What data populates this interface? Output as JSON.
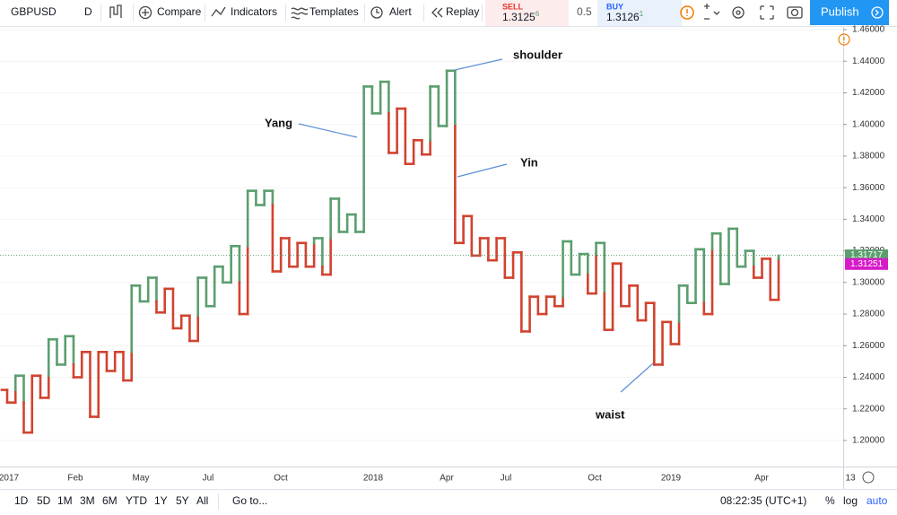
{
  "toolbar": {
    "symbol": "GBPUSD",
    "interval": "D",
    "buttons": [
      "Compare",
      "Indicators",
      "Templates",
      "Alert",
      "Replay"
    ],
    "sell": {
      "label": "SELL",
      "price": "1.3125",
      "pip": "6"
    },
    "spread": "0.5",
    "buy": {
      "label": "BUY",
      "price": "1.3126",
      "pip": "1"
    },
    "publish": "Publish"
  },
  "chart_data": {
    "type": "kagi",
    "values": [
      1.232,
      1.224,
      1.241,
      1.205,
      1.241,
      1.227,
      1.264,
      1.248,
      1.266,
      1.24,
      1.256,
      1.215,
      1.256,
      1.244,
      1.256,
      1.238,
      1.298,
      1.288,
      1.303,
      1.281,
      1.296,
      1.271,
      1.279,
      1.263,
      1.303,
      1.285,
      1.31,
      1.3,
      1.323,
      1.28,
      1.358,
      1.349,
      1.358,
      1.307,
      1.328,
      1.31,
      1.325,
      1.31,
      1.328,
      1.305,
      1.353,
      1.332,
      1.343,
      1.332,
      1.424,
      1.407,
      1.427,
      1.382,
      1.41,
      1.375,
      1.39,
      1.381,
      1.424,
      1.399,
      1.434,
      1.325,
      1.342,
      1.317,
      1.328,
      1.314,
      1.328,
      1.303,
      1.319,
      1.269,
      1.291,
      1.28,
      1.291,
      1.285,
      1.326,
      1.305,
      1.318,
      1.293,
      1.325,
      1.27,
      1.312,
      1.285,
      1.298,
      1.276,
      1.287,
      1.248,
      1.275,
      1.261,
      1.298,
      1.287,
      1.321,
      1.28,
      1.331,
      1.299,
      1.334,
      1.31,
      1.32,
      1.303,
      1.315,
      1.289,
      1.317
    ],
    "colors": {
      "yang": "#5b9e6e",
      "yin": "#d2432f"
    },
    "ylim": [
      1.1835,
      1.465
    ],
    "yticks": [
      {
        "value": 1.2,
        "label": "1.20000"
      },
      {
        "value": 1.22,
        "label": "1.22000"
      },
      {
        "value": 1.24,
        "label": "1.24000"
      },
      {
        "value": 1.26,
        "label": "1.26000"
      },
      {
        "value": 1.28,
        "label": "1.28000"
      },
      {
        "value": 1.3,
        "label": "1.30000"
      },
      {
        "value": 1.32,
        "label": "1.32000"
      },
      {
        "value": 1.34,
        "label": "1.34000"
      },
      {
        "value": 1.36,
        "label": "1.36000"
      },
      {
        "value": 1.38,
        "label": "1.38000"
      },
      {
        "value": 1.4,
        "label": "1.40000"
      },
      {
        "value": 1.42,
        "label": "1.42000"
      },
      {
        "value": 1.44,
        "label": "1.44000"
      },
      {
        "value": 1.46,
        "label": "1.46000"
      }
    ],
    "time_labels": [
      "2017",
      "Feb",
      "May",
      "Jul",
      "Oct",
      "2018",
      "Apr",
      "Jul",
      "Oct",
      "2019",
      "Apr",
      "13"
    ],
    "annotations": [
      "shoulder",
      "Yang",
      "Yin",
      "waist"
    ],
    "price_tags": [
      {
        "value": 1.31717,
        "label": "1.31717",
        "color": "#5b9e6e"
      },
      {
        "value": 1.31251,
        "label": "1.31251",
        "color": "#d81bc8"
      }
    ],
    "grid": true
  },
  "bottom_bar": {
    "ranges": [
      "1D",
      "5D",
      "1M",
      "3M",
      "6M",
      "YTD",
      "1Y",
      "5Y",
      "All"
    ],
    "goto": "Go to...",
    "clock": "08:22:35 (UTC+1)",
    "options": [
      "%",
      "log",
      "auto"
    ]
  }
}
